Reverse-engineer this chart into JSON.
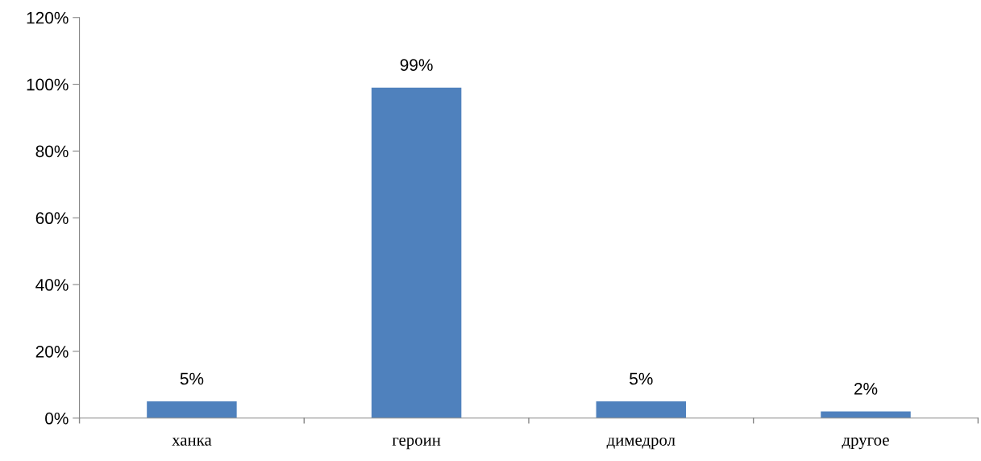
{
  "chart_data": {
    "type": "bar",
    "categories": [
      "ханка",
      "героин",
      "димедрол",
      "другое"
    ],
    "values": [
      5,
      99,
      5,
      2
    ],
    "value_labels": [
      "5%",
      "99%",
      "5%",
      "2%"
    ],
    "color": "#4f81bd",
    "ylim": [
      0,
      120
    ],
    "yticks": [
      {
        "value": 0,
        "label": "0%"
      },
      {
        "value": 20,
        "label": "20%"
      },
      {
        "value": 40,
        "label": "40%"
      },
      {
        "value": 60,
        "label": "60%"
      },
      {
        "value": 80,
        "label": "80%"
      },
      {
        "value": 100,
        "label": "100%"
      },
      {
        "value": 120,
        "label": "120%"
      }
    ],
    "grid": false
  }
}
